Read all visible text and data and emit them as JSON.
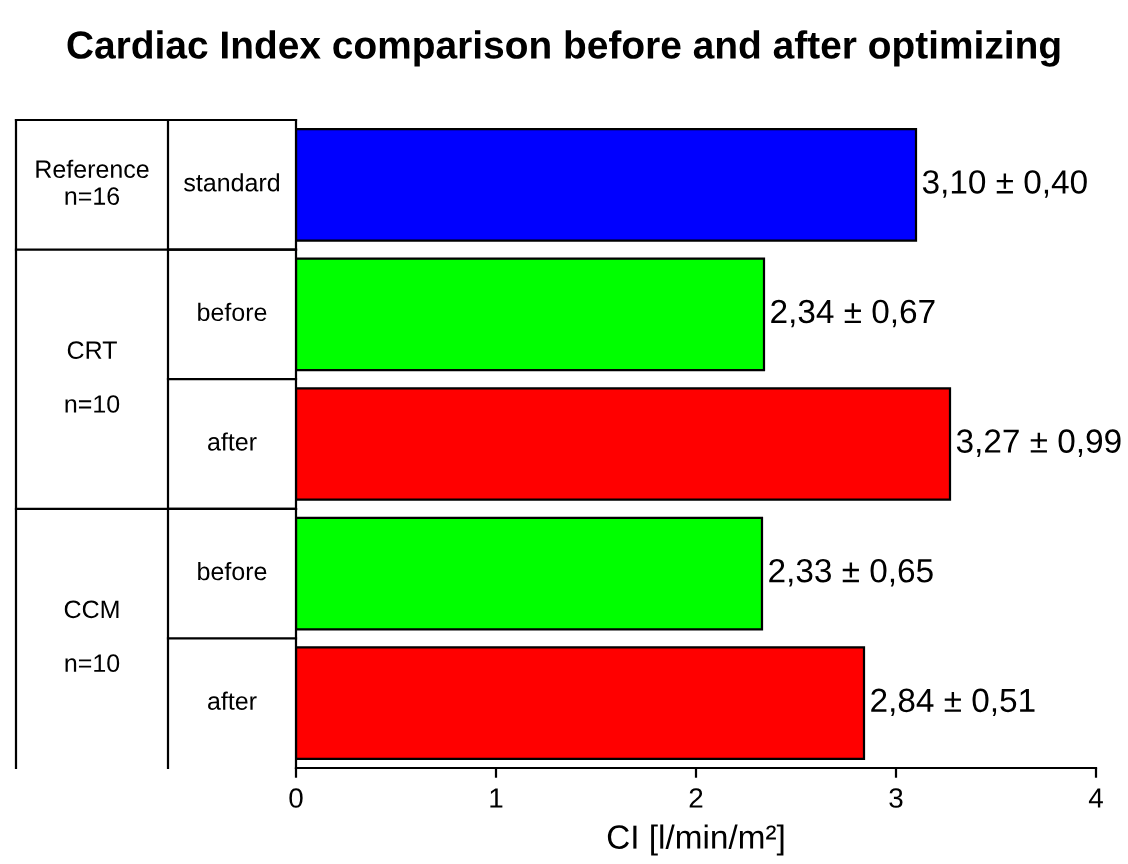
{
  "chart_data": {
    "type": "bar",
    "orientation": "horizontal",
    "title": "Cardiac Index comparison before and after optimizing",
    "xlabel": "CI [l/min/m²]",
    "categories": [
      "standard",
      "before",
      "after",
      "before",
      "after"
    ],
    "values": [
      3.1,
      2.34,
      3.27,
      2.33,
      2.84
    ],
    "colors": [
      "#0000ff",
      "#00ff00",
      "#ff0000",
      "#00ff00",
      "#ff0000"
    ],
    "value_labels": [
      "3,10 ± 0,40",
      "2,34 ± 0,67",
      "3,27 ± 0,99",
      "2,33 ± 0,65",
      "2,84 ± 0,51"
    ],
    "annotations": [
      "Reference\nn=16",
      "CRT\n\nn=10",
      "CCM\n\nn=10"
    ],
    "xlim": [
      0,
      4
    ],
    "xticks": [
      0,
      1,
      2,
      3,
      4
    ],
    "grid": false
  }
}
